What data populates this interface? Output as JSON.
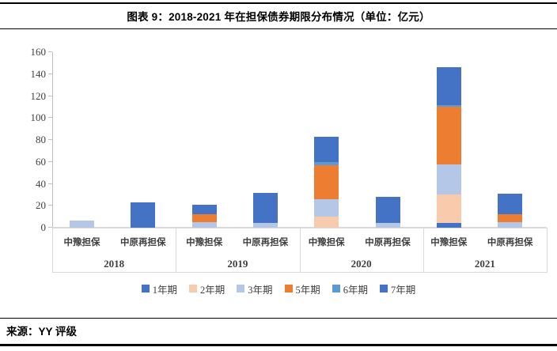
{
  "header": {
    "title": "图表 9：2018-2021 年在担保债券期限分布情况（单位：亿元）"
  },
  "source": {
    "label": "来源：YY 评级"
  },
  "chart_data": {
    "type": "bar",
    "stacked": true,
    "title": "图表 9：2018-2021 年在担保债券期限分布情况",
    "unit": "亿元",
    "ylim": [
      0,
      160
    ],
    "yticks": [
      0,
      20,
      40,
      60,
      80,
      100,
      120,
      140,
      160
    ],
    "grid": false,
    "legend_position": "bottom",
    "years": [
      "2018",
      "2019",
      "2020",
      "2021"
    ],
    "entities": [
      "中豫担保",
      "中原再担保"
    ],
    "categories": [
      "2018 中豫担保",
      "2018 中原再担保",
      "2019 中豫担保",
      "2019 中原再担保",
      "2020 中豫担保",
      "2020 中原再担保",
      "2021 中豫担保",
      "2021 中原再担保"
    ],
    "series": [
      {
        "name": "1年期",
        "color": "#4472C4",
        "values": [
          0,
          0,
          0,
          0,
          0,
          0,
          4,
          0
        ]
      },
      {
        "name": "2年期",
        "color": "#F8CBAD",
        "values": [
          0,
          0,
          0,
          0,
          10,
          0,
          26,
          0
        ]
      },
      {
        "name": "3年期",
        "color": "#B4C7E7",
        "values": [
          6.5,
          0,
          5,
          4,
          16,
          4,
          28,
          5
        ]
      },
      {
        "name": "5年期",
        "color": "#ED7D31",
        "values": [
          0,
          0,
          7,
          0,
          31,
          0,
          52,
          7
        ]
      },
      {
        "name": "6年期",
        "color": "#5B9BD5",
        "values": [
          0,
          0,
          0,
          0,
          3,
          0,
          2,
          0
        ]
      },
      {
        "name": "7年期",
        "color": "#4472C4",
        "values": [
          0,
          23,
          9,
          28,
          23,
          24,
          34,
          19
        ]
      }
    ]
  }
}
